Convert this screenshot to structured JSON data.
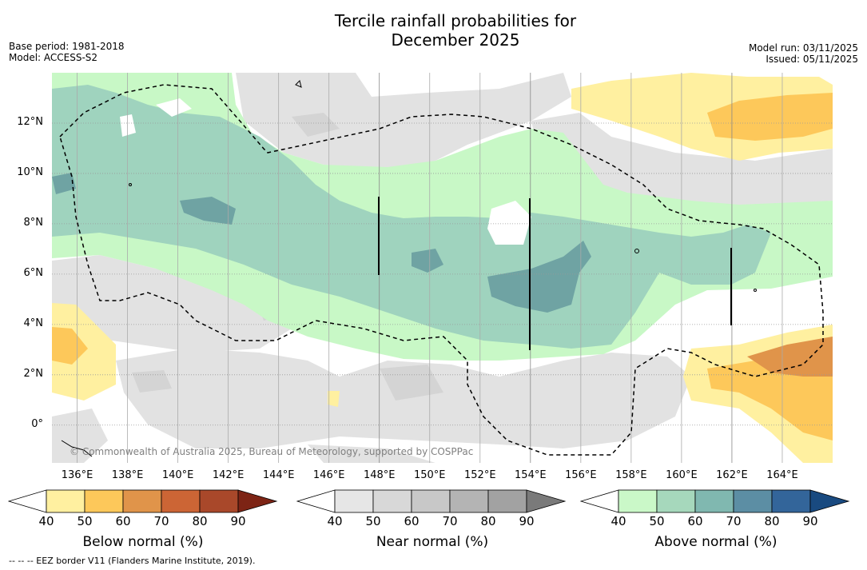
{
  "title_line1": "Tercile rainfall probabilities for",
  "title_line2": "December 2025",
  "base_period": "Base period: 1981-2018",
  "model": "Model: ACCESS-S2",
  "model_run": "Model run: 03/11/2025",
  "issued": "Issued: 05/11/2025",
  "copyright": "© Commonwealth of Australia 2025, Bureau of Meteorology, supported by COSPPac",
  "footer": "-- -- -- EEZ border V11 (Flanders Marine Institute, 2019).",
  "map": {
    "lon_range": [
      135,
      166
    ],
    "lat_range": [
      -1.5,
      14
    ],
    "lon_ticks": [
      "136°E",
      "138°E",
      "140°E",
      "142°E",
      "144°E",
      "146°E",
      "148°E",
      "150°E",
      "152°E",
      "154°E",
      "156°E",
      "158°E",
      "160°E",
      "162°E",
      "164°E"
    ],
    "lat_ticks": [
      "0°",
      "2°N",
      "4°N",
      "6°N",
      "8°N",
      "10°N",
      "12°N"
    ]
  },
  "colorbars": [
    {
      "name": "below",
      "label": "Below normal (%)",
      "ticks": [
        "40",
        "50",
        "60",
        "70",
        "80",
        "90"
      ],
      "colors": [
        "#ffffff",
        "#fff0a0",
        "#fdc85a",
        "#e0944a",
        "#cc6535",
        "#a9482a",
        "#7d2415"
      ]
    },
    {
      "name": "near",
      "label": "Near normal (%)",
      "ticks": [
        "40",
        "50",
        "60",
        "70",
        "80",
        "90"
      ],
      "colors": [
        "#ffffff",
        "#e6e6e6",
        "#d8d8d8",
        "#c8c8c8",
        "#b4b4b4",
        "#a2a2a2",
        "#7a7a7a"
      ]
    },
    {
      "name": "above",
      "label": "Above normal (%)",
      "ticks": [
        "40",
        "50",
        "60",
        "70",
        "80",
        "90"
      ],
      "colors": [
        "#ffffff",
        "#caf8c8",
        "#a6d8bc",
        "#80b8b0",
        "#5c8ea4",
        "#33659a",
        "#194a80"
      ]
    }
  ]
}
